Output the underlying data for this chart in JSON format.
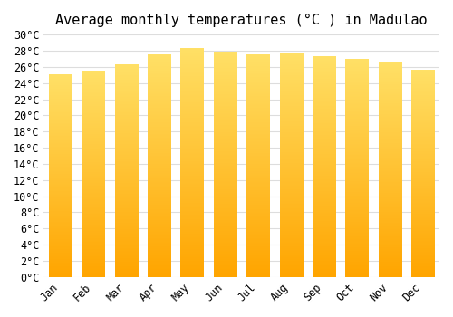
{
  "title": "Average monthly temperatures (°C ) in Madulao",
  "months": [
    "Jan",
    "Feb",
    "Mar",
    "Apr",
    "May",
    "Jun",
    "Jul",
    "Aug",
    "Sep",
    "Oct",
    "Nov",
    "Dec"
  ],
  "values": [
    25.0,
    25.5,
    26.3,
    27.5,
    28.3,
    27.9,
    27.5,
    27.7,
    27.3,
    27.0,
    26.5,
    25.6
  ],
  "bar_color_bottom": "#FFA500",
  "bar_color_top": "#FFE066",
  "ylim": [
    0,
    30
  ],
  "ytick_step": 2,
  "background_color": "#ffffff",
  "grid_color": "#dddddd",
  "title_fontsize": 11,
  "tick_fontsize": 8.5,
  "font_family": "monospace",
  "bar_width": 0.7
}
